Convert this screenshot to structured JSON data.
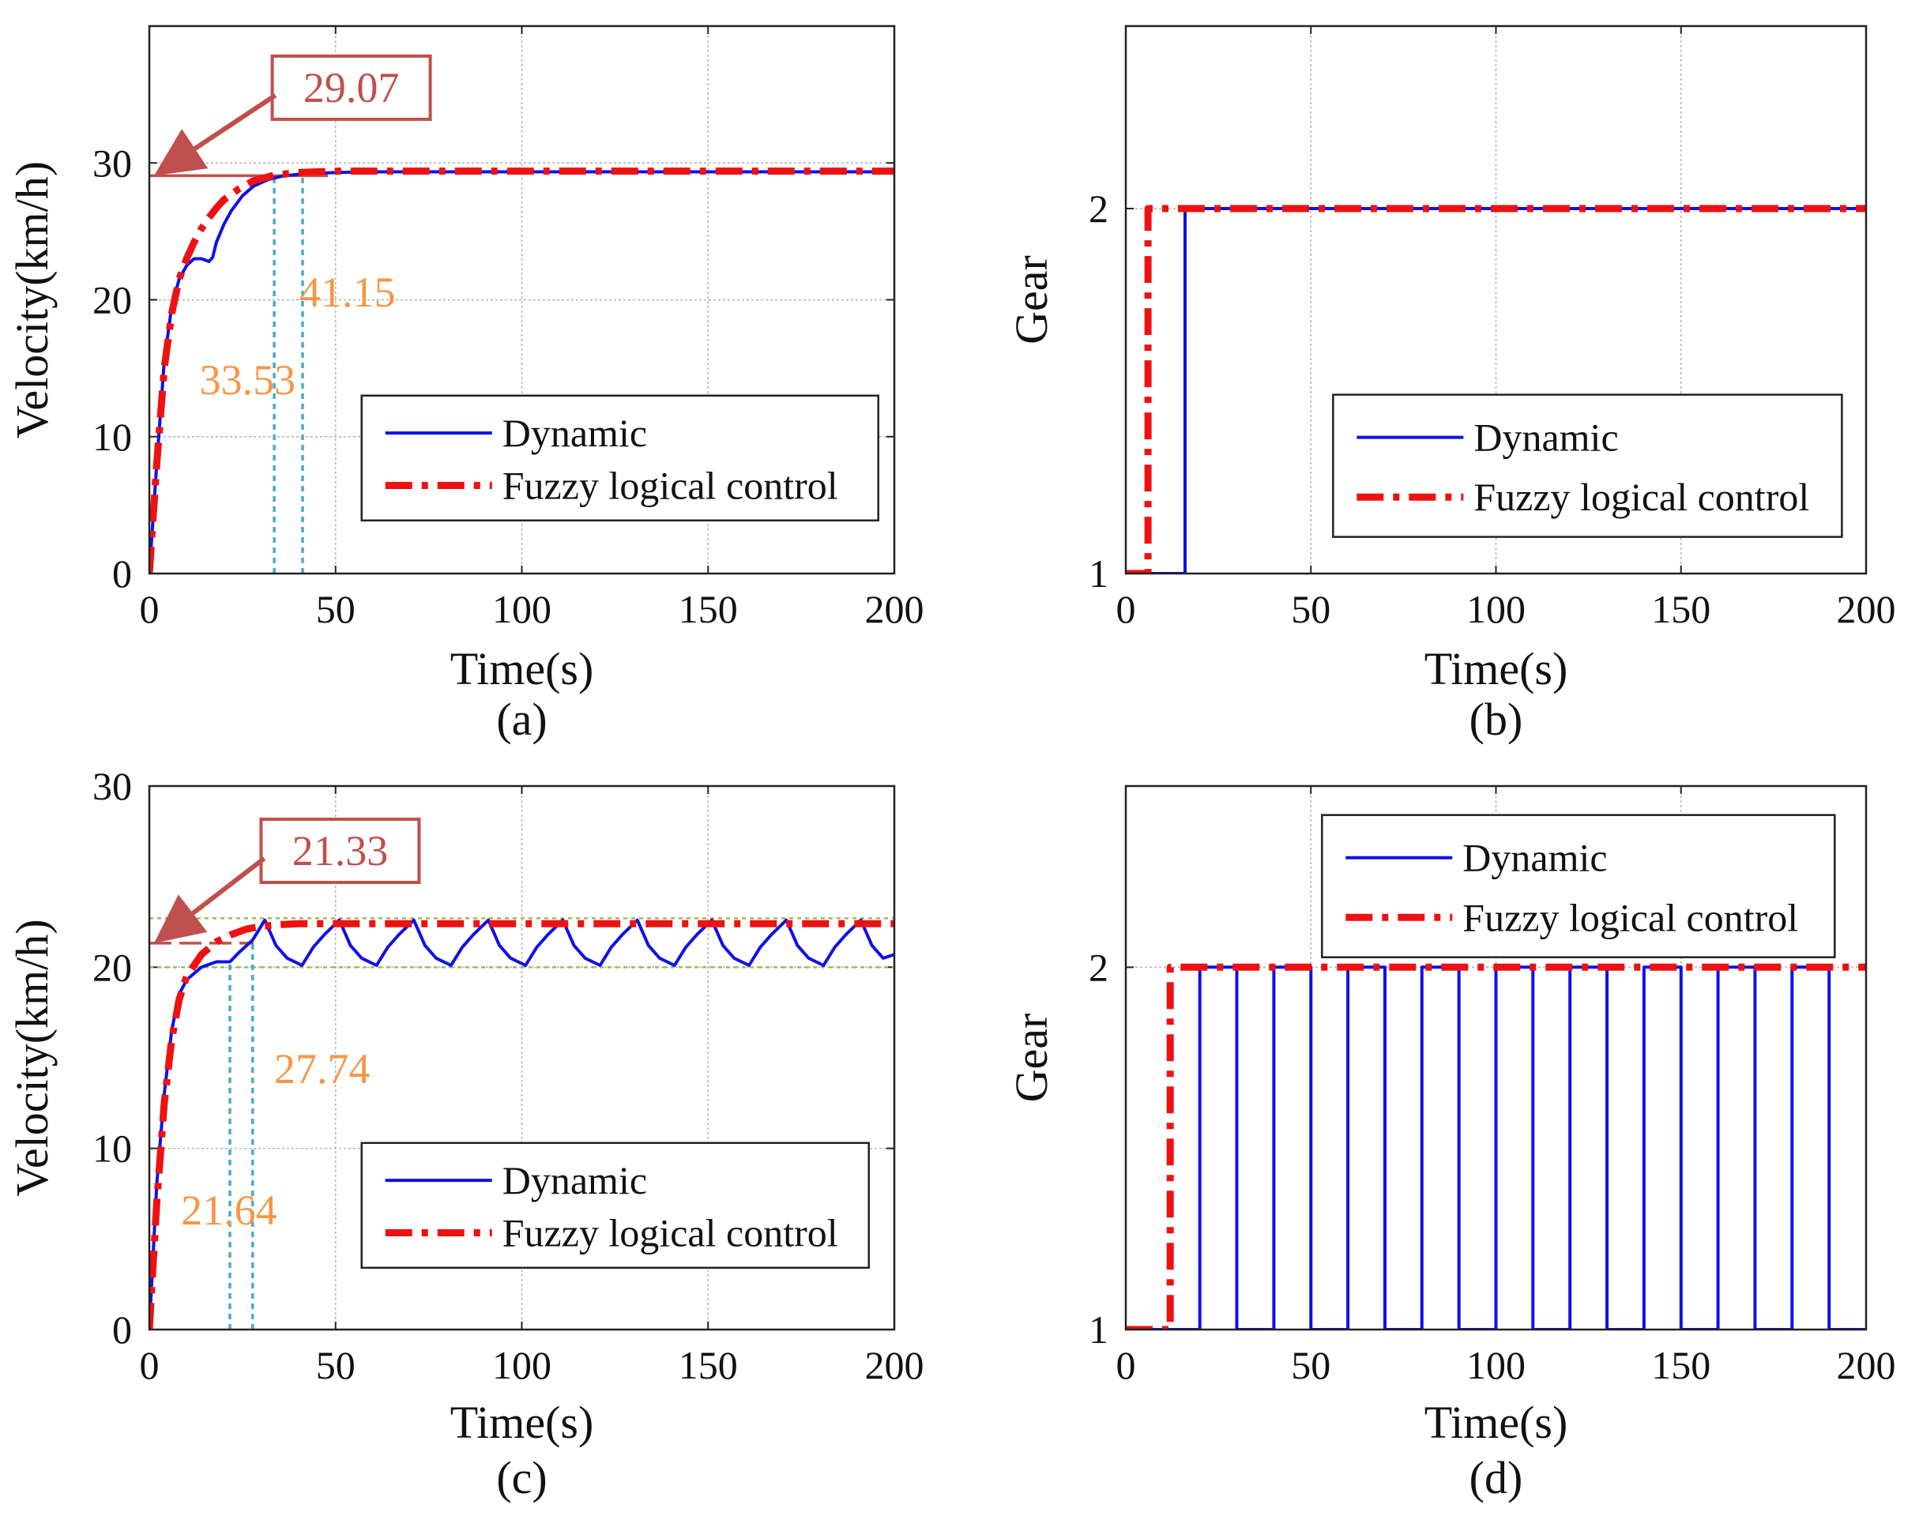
{
  "colors": {
    "dynamic": "#1010e8",
    "fuzzy": "#ee1111",
    "annotation": "#c0504d",
    "marker_line": "#4bacc6",
    "marker_text": "#f79646",
    "band": "#9bbb59",
    "grid": "#b0b0b0"
  },
  "chart_data": [
    {
      "id": "a",
      "type": "line",
      "panel_label": "(a)",
      "xlabel": "Time(s)",
      "ylabel": "Velocity(km/h)",
      "xlim": [
        0,
        200
      ],
      "ylim": [
        0,
        40
      ],
      "xticks": [
        0,
        50,
        100,
        150,
        200
      ],
      "xtick_labels": [
        "0",
        "50",
        "100",
        "150",
        "200"
      ],
      "yticks": [
        0,
        10,
        20,
        30
      ],
      "ytick_labels": [
        "0",
        "10",
        "20",
        "30"
      ],
      "grid": true,
      "legend": {
        "position": "center-right",
        "entries": [
          "Dynamic",
          "Fuzzy logical control"
        ]
      },
      "series": [
        {
          "name": "Dynamic",
          "style": "solid",
          "x": [
            0,
            2,
            4,
            6,
            8,
            10,
            12,
            14,
            16,
            17,
            18,
            20,
            22,
            25,
            28,
            32,
            36,
            41,
            50,
            60,
            80,
            120,
            160,
            200
          ],
          "y": [
            0,
            8,
            15.5,
            19.5,
            21.5,
            22.5,
            23,
            23,
            22.8,
            23.1,
            24.2,
            25.5,
            26.5,
            27.6,
            28.3,
            28.8,
            29.05,
            29.2,
            29.3,
            29.35,
            29.35,
            29.35,
            29.35,
            29.35
          ]
        },
        {
          "name": "Fuzzy logical control",
          "style": "dash-dot",
          "x": [
            0,
            2,
            4,
            6,
            8,
            10,
            12,
            14,
            16,
            18,
            20,
            24,
            28,
            33.53,
            40,
            50,
            60,
            100,
            150,
            200
          ],
          "y": [
            0,
            8,
            15,
            19,
            21.5,
            23,
            24.2,
            25.2,
            26,
            26.7,
            27.3,
            28.1,
            28.7,
            29.1,
            29.3,
            29.4,
            29.4,
            29.4,
            29.4,
            29.4
          ]
        }
      ],
      "hlines": [
        {
          "y": 29.07,
          "style": "solid-annotation"
        }
      ],
      "vlines": [
        {
          "x": 33.53,
          "style": "dotted"
        },
        {
          "x": 41.15,
          "style": "dotted"
        }
      ],
      "annotations": [
        {
          "text": "29.07",
          "kind": "box",
          "value": 29.07
        },
        {
          "text": "33.53",
          "kind": "marker",
          "value": 33.53
        },
        {
          "text": "41.15",
          "kind": "marker",
          "value": 41.15
        }
      ]
    },
    {
      "id": "b",
      "type": "line",
      "panel_label": "(b)",
      "xlabel": "Time(s)",
      "ylabel": "Gear",
      "xlim": [
        0,
        200
      ],
      "ylim": [
        1,
        2.5
      ],
      "xticks": [
        0,
        50,
        100,
        150,
        200
      ],
      "xtick_labels": [
        "0",
        "50",
        "100",
        "150",
        "200"
      ],
      "yticks": [
        1,
        2
      ],
      "ytick_labels": [
        "1",
        "2"
      ],
      "grid": true,
      "legend": {
        "position": "center-right",
        "entries": [
          "Dynamic",
          "Fuzzy logical control"
        ]
      },
      "series": [
        {
          "name": "Dynamic",
          "style": "solid",
          "x": [
            0,
            16,
            16,
            200
          ],
          "y": [
            1,
            1,
            2,
            2
          ]
        },
        {
          "name": "Fuzzy logical control",
          "style": "dash-dot",
          "x": [
            0,
            6,
            6,
            200
          ],
          "y": [
            1,
            1,
            2,
            2
          ]
        }
      ]
    },
    {
      "id": "c",
      "type": "line",
      "panel_label": "(c)",
      "xlabel": "Time(s)",
      "ylabel": "Velocity(km/h)",
      "xlim": [
        0,
        200
      ],
      "ylim": [
        0,
        30
      ],
      "xticks": [
        0,
        50,
        100,
        150,
        200
      ],
      "xtick_labels": [
        "0",
        "50",
        "100",
        "150",
        "200"
      ],
      "yticks": [
        0,
        10,
        20,
        30
      ],
      "ytick_labels": [
        "0",
        "10",
        "20",
        "30"
      ],
      "grid": true,
      "legend": {
        "position": "bottom-right",
        "entries": [
          "Dynamic",
          "Fuzzy logical control"
        ]
      },
      "series": [
        {
          "name": "Dynamic",
          "style": "solid",
          "x": [
            0,
            2,
            4,
            6,
            8,
            10,
            14,
            18,
            21.64,
            24,
            27.74,
            31,
            34,
            37,
            41,
            44,
            47,
            51,
            54,
            57,
            61,
            64,
            67,
            71,
            74,
            77,
            81,
            84,
            87,
            91,
            94,
            97,
            101,
            104,
            107,
            111,
            114,
            117,
            121,
            124,
            127,
            131,
            134,
            137,
            141,
            144,
            147,
            151,
            154,
            157,
            161,
            164,
            167,
            171,
            174,
            177,
            181,
            184,
            187,
            191,
            194,
            197,
            200
          ],
          "y": [
            0,
            8,
            13,
            16.5,
            18.5,
            19.3,
            20,
            20.3,
            20.3,
            20.8,
            21.5,
            22.6,
            21.2,
            20.5,
            20.1,
            21.1,
            21.8,
            22.6,
            21.2,
            20.5,
            20.1,
            21.1,
            21.8,
            22.6,
            21.2,
            20.5,
            20.1,
            21.1,
            21.8,
            22.6,
            21.2,
            20.5,
            20.1,
            21.1,
            21.8,
            22.6,
            21.2,
            20.5,
            20.1,
            21.1,
            21.8,
            22.6,
            21.2,
            20.5,
            20.1,
            21.1,
            21.8,
            22.6,
            21.2,
            20.5,
            20.1,
            21.1,
            21.8,
            22.6,
            21.2,
            20.5,
            20.1,
            21.1,
            21.8,
            22.6,
            21.2,
            20.5,
            20.7
          ]
        },
        {
          "name": "Fuzzy logical control",
          "style": "dash-dot",
          "x": [
            0,
            2,
            4,
            6,
            8,
            10,
            14,
            18,
            22,
            26,
            30,
            35,
            40,
            50,
            100,
            150,
            200
          ],
          "y": [
            0,
            7,
            12.5,
            16,
            18.2,
            19.5,
            20.7,
            21.4,
            21.8,
            22.1,
            22.25,
            22.35,
            22.4,
            22.4,
            22.4,
            22.4,
            22.4
          ]
        }
      ],
      "hlines": [
        {
          "y": 22.7,
          "style": "band"
        },
        {
          "y": 20.0,
          "style": "band"
        },
        {
          "y": 21.33,
          "style": "dash-annotation"
        }
      ],
      "vlines": [
        {
          "x": 21.64,
          "style": "dotted"
        },
        {
          "x": 27.74,
          "style": "dotted"
        }
      ],
      "annotations": [
        {
          "text": "21.33",
          "kind": "box",
          "value": 21.33
        },
        {
          "text": "27.74",
          "kind": "marker",
          "value": 27.74
        },
        {
          "text": "21.64",
          "kind": "marker",
          "value": 21.64
        }
      ]
    },
    {
      "id": "d",
      "type": "line",
      "panel_label": "(d)",
      "xlabel": "Time(s)",
      "ylabel": "Gear",
      "xlim": [
        0,
        200
      ],
      "ylim": [
        1,
        2.5
      ],
      "xticks": [
        0,
        50,
        100,
        150,
        200
      ],
      "xtick_labels": [
        "0",
        "50",
        "100",
        "150",
        "200"
      ],
      "yticks": [
        1,
        2
      ],
      "ytick_labels": [
        "1",
        "2"
      ],
      "grid": true,
      "legend": {
        "position": "top-right",
        "entries": [
          "Dynamic",
          "Fuzzy logical control"
        ]
      },
      "series": [
        {
          "name": "Dynamic",
          "style": "solid",
          "x": [
            0,
            20,
            20,
            30,
            30,
            40,
            40,
            50,
            50,
            60,
            60,
            70,
            70,
            80,
            80,
            90,
            90,
            100,
            100,
            110,
            110,
            120,
            120,
            130,
            130,
            140,
            140,
            150,
            150,
            160,
            160,
            170,
            170,
            180,
            180,
            190,
            190,
            200
          ],
          "y": [
            1,
            1,
            2,
            2,
            1,
            1,
            2,
            2,
            1,
            1,
            2,
            2,
            1,
            1,
            2,
            2,
            1,
            1,
            2,
            2,
            1,
            1,
            2,
            2,
            1,
            1,
            2,
            2,
            1,
            1,
            2,
            2,
            1,
            1,
            2,
            2,
            1,
            1
          ]
        },
        {
          "name": "Fuzzy logical control",
          "style": "dash-dot",
          "x": [
            0,
            12,
            12,
            200
          ],
          "y": [
            1,
            1,
            2,
            2
          ]
        }
      ]
    }
  ]
}
